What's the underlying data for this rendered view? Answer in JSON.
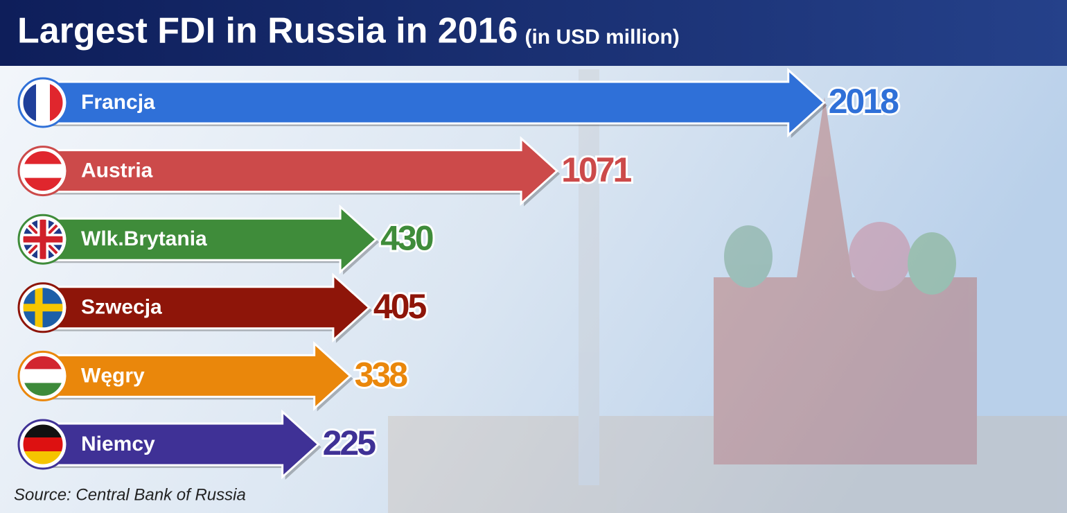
{
  "chart_data": {
    "type": "bar",
    "title": "Largest FDI in Russia in 2016",
    "subtitle": "(in USD million)",
    "categories": [
      "Francja",
      "Austria",
      "Wlk.Brytania",
      "Szwecja",
      "Węgry",
      "Niemcy"
    ],
    "values": [
      2018,
      1071,
      430,
      405,
      338,
      225
    ],
    "colors": [
      "#2f70d8",
      "#cc4a4a",
      "#3f8c3a",
      "#8e1509",
      "#ea870b",
      "#3f3196"
    ],
    "source": "Source: Central Bank of Russia"
  }
}
